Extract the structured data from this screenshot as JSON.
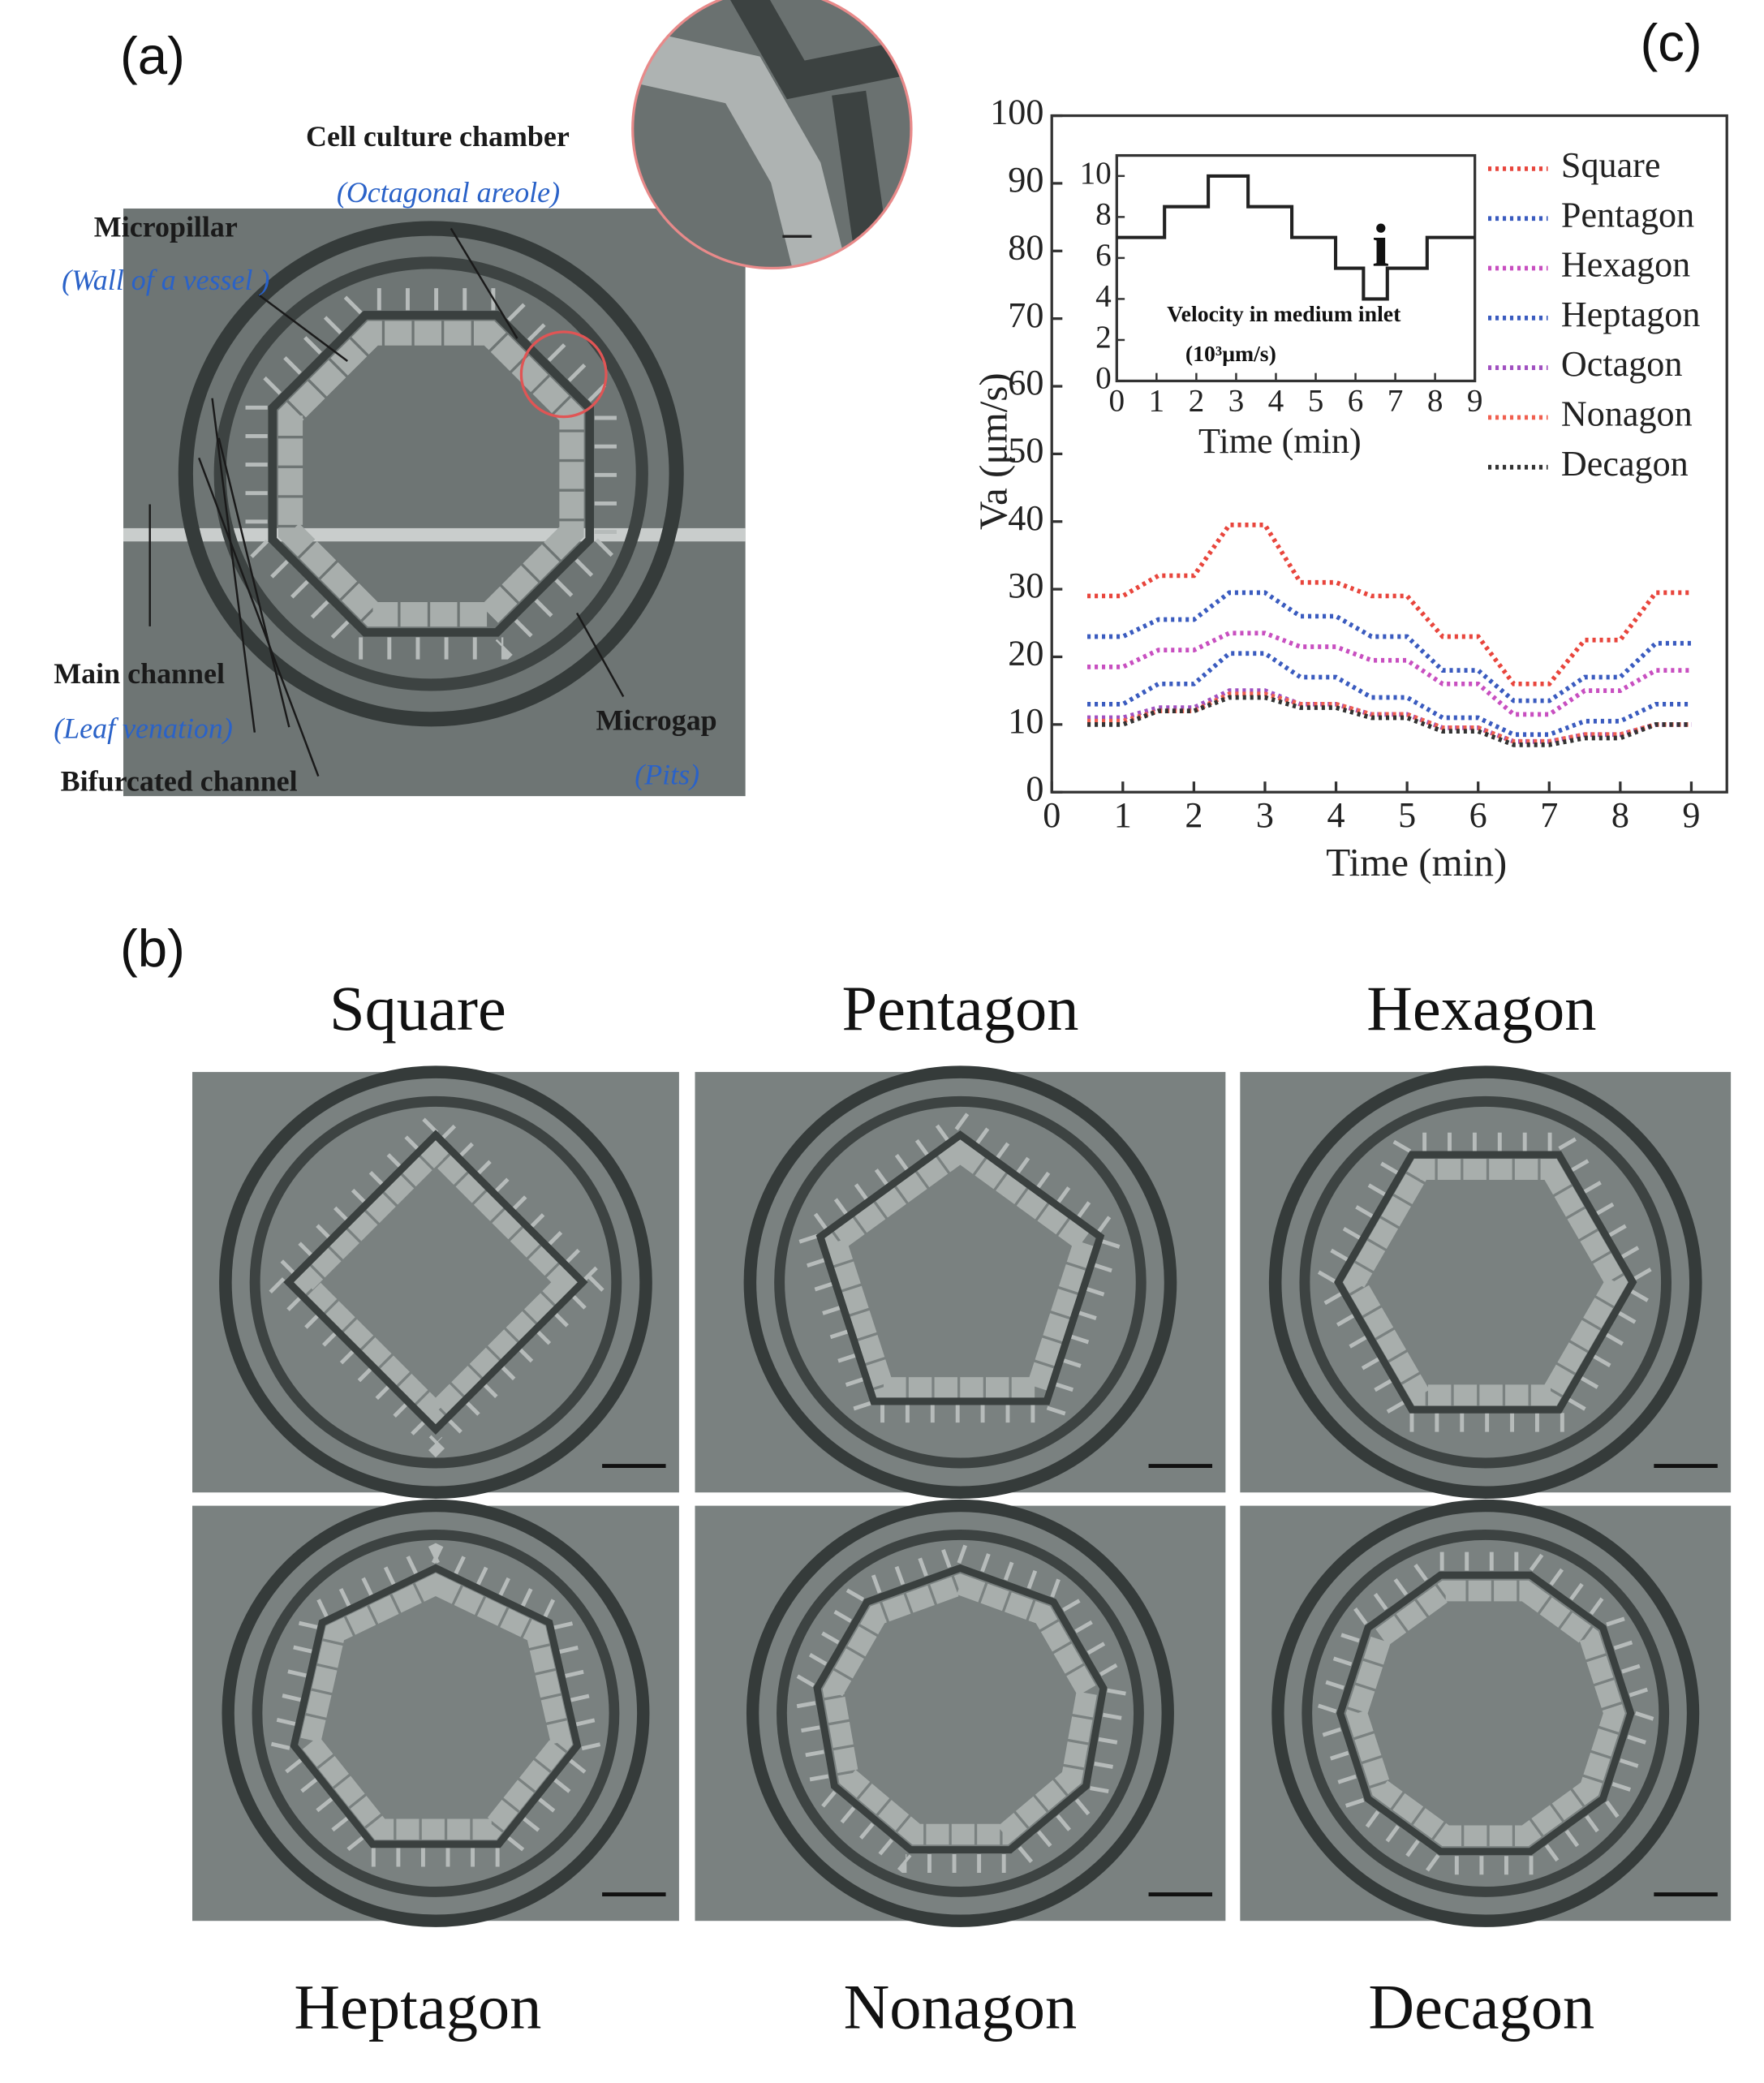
{
  "panel_labels": [
    "(a)",
    "(b)",
    "(c)"
  ],
  "panel_a": {
    "annotations": [
      "Cell culture chamber",
      "(Octagonal areole)",
      "Micropillar",
      "(Wall of a vessel )",
      "Main channel",
      "(Leaf venation)",
      "Bifurcated channel",
      "Microgap",
      "(Pits)"
    ]
  },
  "panel_b": {
    "labels": [
      "Square",
      "Pentagon",
      "Hexagon",
      "Heptagon",
      "Nonagon",
      "Decagon"
    ]
  },
  "chart_data": {
    "type": "line",
    "x_label": "Time (min)",
    "y_label": "Va (μm/s)",
    "x": [
      0.5,
      1,
      1.5,
      2,
      2.5,
      3,
      3.5,
      4,
      4.5,
      5,
      5.5,
      6,
      6.5,
      7,
      7.5,
      8,
      8.5,
      9
    ],
    "series": [
      {
        "name": "Square",
        "color": "#e8453c",
        "values": [
          29,
          29,
          32,
          32,
          39.5,
          39.5,
          31,
          31,
          29,
          29,
          23,
          23,
          16,
          16,
          22.5,
          22.5,
          29.5,
          29.5
        ]
      },
      {
        "name": "Pentagon",
        "color": "#3a5bbf",
        "values": [
          23,
          23,
          25.5,
          25.5,
          29.5,
          29.5,
          26,
          26,
          23,
          23,
          18,
          18,
          13.5,
          13.5,
          17,
          17,
          22,
          22
        ]
      },
      {
        "name": "Hexagon",
        "color": "#c84fc0",
        "values": [
          18.5,
          18.5,
          21,
          21,
          23.5,
          23.5,
          21.5,
          21.5,
          19.5,
          19.5,
          16,
          16,
          11.5,
          11.5,
          15,
          15,
          18,
          18
        ]
      },
      {
        "name": "Heptagon",
        "color": "#3a5bbf",
        "values": [
          13,
          13,
          16,
          16,
          20.5,
          20.5,
          17,
          17,
          14,
          14,
          11,
          11,
          8.5,
          8.5,
          10.5,
          10.5,
          13,
          13
        ]
      },
      {
        "name": "Octagon",
        "color": "#a050c0",
        "values": [
          11,
          11,
          12.5,
          12.5,
          15,
          15,
          13,
          13,
          11.5,
          11.5,
          9.5,
          9.5,
          7.5,
          7.5,
          8.5,
          8.5,
          10,
          10
        ]
      },
      {
        "name": "Nonagon",
        "color": "#f06050",
        "values": [
          10.5,
          10.5,
          12,
          12,
          14.5,
          14.5,
          13,
          13,
          11.5,
          11.5,
          9.5,
          9.5,
          7.5,
          7.5,
          8.5,
          8.5,
          10,
          10
        ]
      },
      {
        "name": "Decagon",
        "color": "#333333",
        "values": [
          10,
          10,
          12,
          12,
          14,
          14,
          12.5,
          12.5,
          11,
          11,
          9,
          9,
          7,
          7,
          8,
          8,
          10,
          10
        ]
      }
    ],
    "xlim": [
      0,
      9.5
    ],
    "ylim": [
      0,
      100
    ],
    "xticks": [
      0,
      1,
      2,
      3,
      4,
      5,
      6,
      7,
      8,
      9
    ],
    "yticks": [
      0,
      10,
      20,
      30,
      40,
      50,
      60,
      70,
      80,
      90,
      100
    ],
    "legend_position": "upper right",
    "inset": {
      "type": "line",
      "title": "Velocity in medium inlet",
      "unit": "(10³μm/s)",
      "marker": "i",
      "x_label": "Time (min)",
      "x": [
        0,
        1.2,
        1.2,
        2.3,
        2.3,
        3.3,
        3.3,
        4.4,
        4.4,
        5.5,
        5.5,
        6.2,
        6.2,
        6.8,
        6.8,
        7.8,
        7.8,
        9
      ],
      "series": [
        {
          "color": "#222222",
          "values": [
            7,
            7,
            8.5,
            8.5,
            10,
            10,
            8.5,
            8.5,
            7,
            7,
            5.5,
            5.5,
            4,
            4,
            5.5,
            5.5,
            7,
            7
          ]
        }
      ],
      "xlim": [
        0,
        9
      ],
      "ylim": [
        0,
        11
      ],
      "xticks": [
        0,
        1,
        2,
        3,
        4,
        5,
        6,
        7,
        8,
        9
      ],
      "yticks": [
        0,
        2,
        4,
        6,
        8,
        10
      ]
    }
  }
}
